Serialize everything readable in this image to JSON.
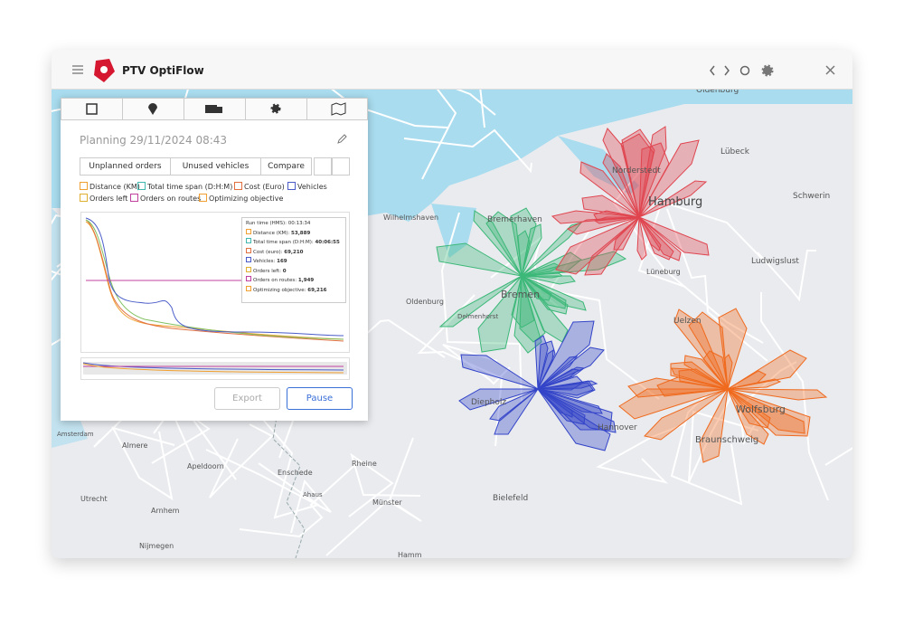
{
  "app": {
    "title": "PTV OptiFlow"
  },
  "panel": {
    "planning": "Planning 29/11/2024  08:43",
    "tabs": [
      "Unplanned orders",
      "Unused vehicles",
      "Compare"
    ],
    "legend": [
      "Distance (KM)",
      "Total time span (D:H:M)",
      "Cost (Euro)",
      "Vehicles",
      "Orders left",
      "Orders on routes",
      "Optimizing objective"
    ],
    "tooltip": {
      "title": "Run time (HMS): 00:13:34",
      "items": [
        {
          "label": "Distance (KM):",
          "value": "53,889"
        },
        {
          "label": "Total time span (D:H:M):",
          "value": "40:06:55"
        },
        {
          "label": "Cost (euro):",
          "value": "69,210"
        },
        {
          "label": "Vehicles:",
          "value": "169"
        },
        {
          "label": "Orders left:",
          "value": "0"
        },
        {
          "label": "Orders on routes:",
          "value": "1,949"
        },
        {
          "label": "Optimizing objective:",
          "value": "69,216"
        }
      ]
    },
    "buttons": [
      "Export",
      "Pause"
    ]
  },
  "map": {
    "labels": [
      "Oldenburg",
      "Lübeck",
      "Norderstedt",
      "Hamburg",
      "Schwerin",
      "Bremerhaven",
      "Wilhelmshaven",
      "Ludwigslust",
      "Bremen",
      "Oldenburg",
      "Delmenhorst",
      "Lüneburg",
      "Uelzen",
      "Diepholz",
      "Hannover",
      "Wolfsburg",
      "Braunschweig",
      "Bielefeld",
      "Amsterdam",
      "Almere",
      "Apeldoorn",
      "Enschede",
      "Utrecht",
      "Arnhem",
      "Nijmegen",
      "Rheine",
      "Münster",
      "Hamm",
      "Ahaus"
    ]
  }
}
